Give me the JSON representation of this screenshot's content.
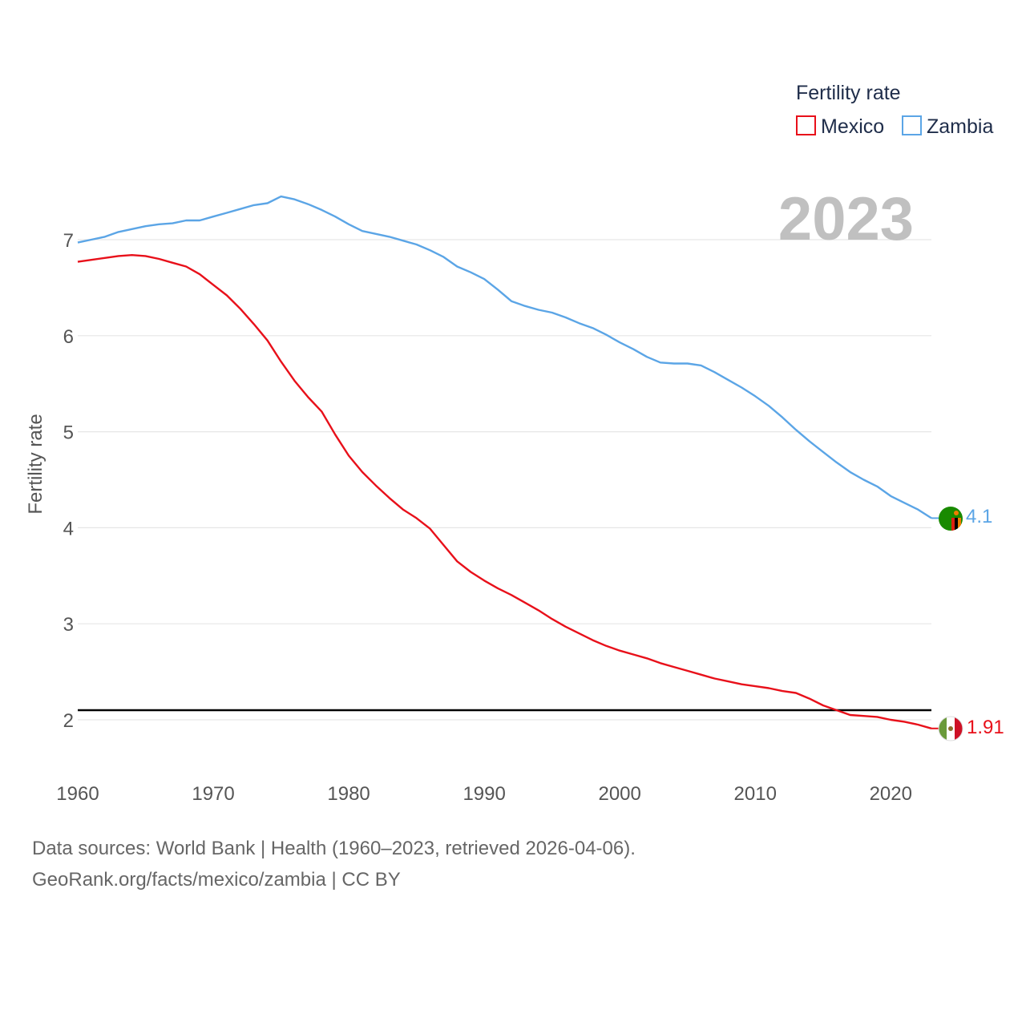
{
  "chart_data": {
    "type": "line",
    "year_label": "2023",
    "ylabel": "Fertility rate",
    "xlim": [
      1960,
      2023
    ],
    "ylim": [
      1.65,
      7.8
    ],
    "x_ticks": [
      1960,
      1970,
      1980,
      1990,
      2000,
      2010,
      2020
    ],
    "y_ticks": [
      2,
      3,
      4,
      5,
      6,
      7
    ],
    "reference_line": 2.1,
    "legend": {
      "title": "Fertility rate",
      "placement": "top-right"
    },
    "x": [
      1960,
      1961,
      1962,
      1963,
      1964,
      1965,
      1966,
      1967,
      1968,
      1969,
      1970,
      1971,
      1972,
      1973,
      1974,
      1975,
      1976,
      1977,
      1978,
      1979,
      1980,
      1981,
      1982,
      1983,
      1984,
      1985,
      1986,
      1987,
      1988,
      1989,
      1990,
      1991,
      1992,
      1993,
      1994,
      1995,
      1996,
      1997,
      1998,
      1999,
      2000,
      2001,
      2002,
      2003,
      2004,
      2005,
      2006,
      2007,
      2008,
      2009,
      2010,
      2011,
      2012,
      2013,
      2014,
      2015,
      2016,
      2017,
      2018,
      2019,
      2020,
      2021,
      2022,
      2023
    ],
    "series": [
      {
        "name": "Mexico",
        "color": "#e8101a",
        "end_label": "1.91",
        "flag": "mexico-flag",
        "values": [
          6.77,
          6.79,
          6.81,
          6.83,
          6.84,
          6.83,
          6.8,
          6.76,
          6.72,
          6.64,
          6.53,
          6.42,
          6.28,
          6.12,
          5.95,
          5.73,
          5.53,
          5.36,
          5.21,
          4.97,
          4.75,
          4.58,
          4.44,
          4.31,
          4.19,
          4.1,
          3.99,
          3.82,
          3.65,
          3.54,
          3.45,
          3.37,
          3.3,
          3.22,
          3.14,
          3.05,
          2.97,
          2.9,
          2.83,
          2.77,
          2.72,
          2.68,
          2.64,
          2.59,
          2.55,
          2.51,
          2.47,
          2.43,
          2.4,
          2.37,
          2.35,
          2.33,
          2.3,
          2.28,
          2.22,
          2.15,
          2.1,
          2.05,
          2.04,
          2.03,
          2.0,
          1.98,
          1.95,
          1.91
        ]
      },
      {
        "name": "Zambia",
        "color": "#5ba5e6",
        "end_label": "4.1",
        "flag": "zambia-flag",
        "values": [
          6.97,
          7.0,
          7.03,
          7.08,
          7.11,
          7.14,
          7.16,
          7.17,
          7.2,
          7.2,
          7.24,
          7.28,
          7.32,
          7.36,
          7.38,
          7.45,
          7.42,
          7.37,
          7.31,
          7.24,
          7.16,
          7.09,
          7.06,
          7.03,
          6.99,
          6.95,
          6.89,
          6.82,
          6.72,
          6.66,
          6.59,
          6.48,
          6.36,
          6.31,
          6.27,
          6.24,
          6.19,
          6.13,
          6.08,
          6.01,
          5.93,
          5.86,
          5.78,
          5.72,
          5.71,
          5.71,
          5.69,
          5.62,
          5.54,
          5.46,
          5.37,
          5.27,
          5.15,
          5.02,
          4.9,
          4.79,
          4.68,
          4.58,
          4.5,
          4.43,
          4.33,
          4.26,
          4.19,
          4.1
        ]
      }
    ]
  },
  "footer": {
    "line1": "Data sources: World Bank | Health (1960–2023, retrieved 2026-04-06).",
    "line2": "GeoRank.org/facts/mexico/zambia | CC BY"
  }
}
